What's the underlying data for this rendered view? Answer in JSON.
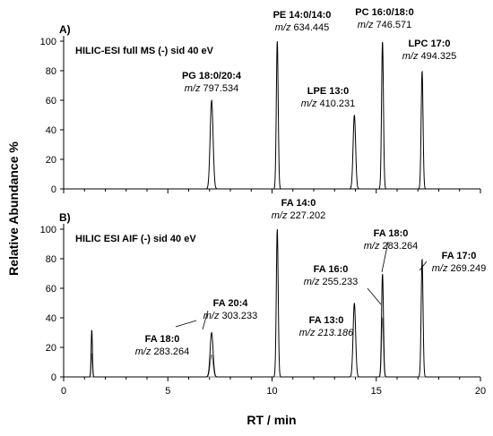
{
  "chart_data": [
    {
      "type": "line",
      "panel_letter": "A)",
      "title": "HILIC-ESI full MS (-) sid 40 eV",
      "ylim": [
        0,
        100
      ],
      "xlim": [
        0,
        20
      ],
      "yticks": [
        "0",
        "20",
        "40",
        "60",
        "80",
        "100"
      ],
      "xticks": [],
      "peaks": [
        {
          "name": "PG 18:0/20:4",
          "mz_prefix": "m/z",
          "mz": "797.534",
          "rt": 7.1,
          "height": 60
        },
        {
          "name": "PE 14:0/14:0",
          "mz_prefix": "m/z",
          "mz": "634.445",
          "rt": 10.25,
          "height": 100
        },
        {
          "name": "LPE 13:0",
          "mz_prefix": "m/z",
          "mz": "410.231",
          "rt": 13.95,
          "height": 50
        },
        {
          "name": "PC 16:0/18:0",
          "mz_prefix": "m/z",
          "mz": "746.571",
          "rt": 15.3,
          "height": 100
        },
        {
          "name": "LPC 17:0",
          "mz_prefix": "m/z",
          "mz": "494.325",
          "rt": 17.2,
          "height": 80
        }
      ]
    },
    {
      "type": "line",
      "panel_letter": "B)",
      "title": "HILIC ESI AIF (-) sid 40 eV",
      "ylim": [
        0,
        100
      ],
      "xlim": [
        0,
        20
      ],
      "yticks": [
        "0",
        "20",
        "40",
        "60",
        "80",
        "100"
      ],
      "xticks": [
        "0",
        "5",
        "10",
        "15",
        "20"
      ],
      "peaks": [
        {
          "name": "FA 18:0",
          "mz_prefix": "m/z",
          "mz": "283.264",
          "rt": 7.1,
          "height": 15
        },
        {
          "name": "FA 20:4",
          "mz_prefix": "m/z",
          "mz": "303.233",
          "rt": 7.1,
          "height": 30
        },
        {
          "name": "FA 14:0",
          "mz_prefix": "m/z",
          "mz": "227.202",
          "rt": 10.25,
          "height": 100
        },
        {
          "name": "FA 13:0",
          "mz_prefix": "m/z",
          "mz": "213.186",
          "rt": 13.95,
          "height": 50
        },
        {
          "name": "FA 16:0",
          "mz_prefix": "m/z",
          "mz": "255.233",
          "rt": 15.3,
          "height": 40
        },
        {
          "name": "FA 18:0",
          "mz_prefix": "m/z",
          "mz": "283.264",
          "rt": 15.3,
          "height": 70
        },
        {
          "name": "FA 17:0",
          "mz_prefix": "m/z",
          "mz": "269.249",
          "rt": 17.2,
          "height": 80
        }
      ],
      "extra_peaks": [
        {
          "rt": 1.35,
          "height": 32
        }
      ]
    }
  ],
  "axes": {
    "ylabel": "Relative Abundance %",
    "xlabel": "RT / min"
  }
}
